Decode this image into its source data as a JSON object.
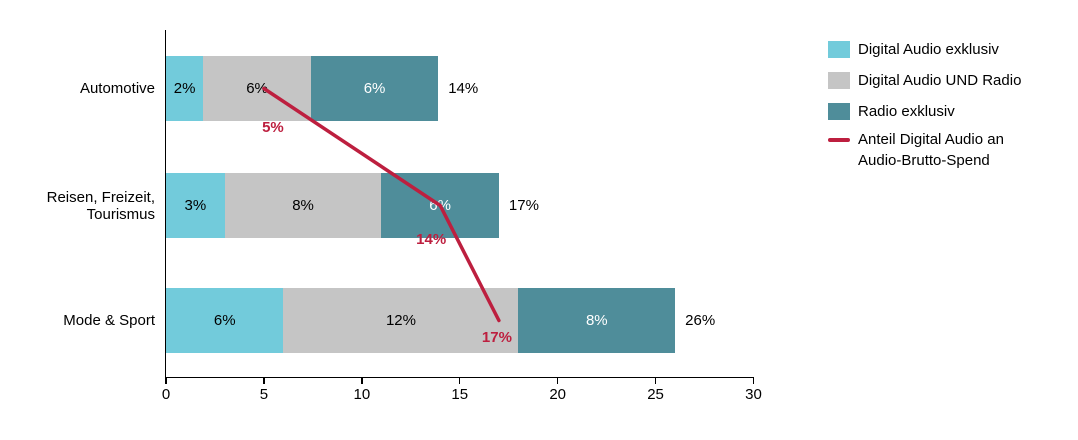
{
  "chart_data": {
    "type": "bar",
    "subtype": "horizontal-stacked-with-line-overlay",
    "title": "",
    "categories": [
      "Automotive",
      "Reisen, Freizeit,\nTourismus",
      "Mode & Sport"
    ],
    "series": [
      {
        "name": "Digital Audio exklusiv",
        "color": "#72CBDB",
        "label_text_color": "#000000",
        "values": [
          2,
          3,
          6
        ],
        "labels": [
          "2%",
          "3%",
          "6%"
        ],
        "drawn_values": [
          1.9,
          3,
          6
        ]
      },
      {
        "name": "Digital Audio UND Radio",
        "color": "#C5C5C5",
        "label_text_color": "#000000",
        "values": [
          6,
          8,
          12
        ],
        "labels": [
          "6%",
          "8%",
          "12%"
        ],
        "drawn_values": [
          5.5,
          8,
          12
        ]
      },
      {
        "name": "Radio exklusiv",
        "color": "#4F8D9A",
        "label_text_color": "#FFFFFF",
        "values": [
          6,
          6,
          8
        ],
        "labels": [
          "6%",
          "6%",
          "8%"
        ],
        "drawn_values": [
          6.5,
          6,
          8
        ]
      }
    ],
    "totals": {
      "values": [
        14,
        17,
        26
      ],
      "labels": [
        "14%",
        "17%",
        "26%"
      ]
    },
    "line_series": {
      "name": "Anteil Digital Audio an Audio-Brutto-Spend",
      "color": "#BD1F3F",
      "values": [
        5,
        14,
        17
      ],
      "labels": [
        "5%",
        "14%",
        "17%"
      ]
    },
    "x_axis": {
      "min": 0,
      "max": 30,
      "ticks": [
        "0",
        "5",
        "10",
        "15",
        "20",
        "25",
        "30"
      ],
      "axis_color": "#000000"
    },
    "legend": {
      "position": "right",
      "items": [
        {
          "type": "swatch",
          "label": "Digital Audio exklusiv",
          "color": "#72CBDB"
        },
        {
          "type": "swatch",
          "label": "Digital Audio UND Radio",
          "color": "#C5C5C5"
        },
        {
          "type": "swatch",
          "label": "Radio exklusiv",
          "color": "#4F8D9A"
        },
        {
          "type": "line",
          "label": "Anteil Digital Audio an\nAudio-Brutto-Spend",
          "color": "#BD1F3F"
        }
      ]
    },
    "grid": false,
    "background": "#FFFFFF",
    "text_color": "#000000"
  }
}
